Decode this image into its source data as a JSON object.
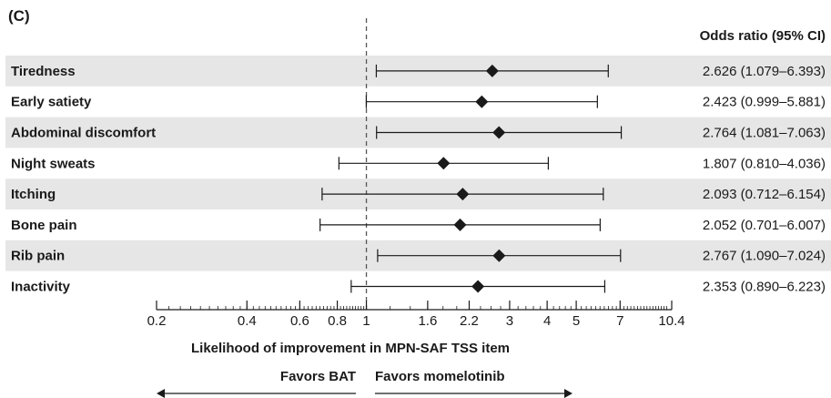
{
  "panel_label": "(C)",
  "chart_data": {
    "type": "forest",
    "xscale": "log",
    "xlim": [
      0.2,
      10.4
    ],
    "reference_line": 1,
    "xlabel": "Likelihood of improvement in MPN-SAF TSS item",
    "column_header": "Odds ratio (95% CI)",
    "x_ticks": [
      0.2,
      0.4,
      0.6,
      0.8,
      1,
      1.6,
      2.2,
      3,
      4,
      5,
      7,
      10.4
    ],
    "x_tick_labels": [
      "0.2",
      "0.4",
      "0.6",
      "0.8",
      "1",
      "1.6",
      "2.2",
      "3",
      "4",
      "5",
      "7",
      "10.4"
    ],
    "direction_left": "Favors BAT",
    "direction_right": "Favors momelotinib",
    "rows": [
      {
        "label": "Tiredness",
        "or": 2.626,
        "lo": 1.079,
        "hi": 6.393,
        "text": "2.626 (1.079–6.393)",
        "shaded": true
      },
      {
        "label": "Early satiety",
        "or": 2.423,
        "lo": 0.999,
        "hi": 5.881,
        "text": "2.423 (0.999–5.881)",
        "shaded": false
      },
      {
        "label": "Abdominal discomfort",
        "or": 2.764,
        "lo": 1.081,
        "hi": 7.063,
        "text": "2.764 (1.081–7.063)",
        "shaded": true
      },
      {
        "label": "Night sweats",
        "or": 1.807,
        "lo": 0.81,
        "hi": 4.036,
        "text": "1.807 (0.810–4.036)",
        "shaded": false
      },
      {
        "label": "Itching",
        "or": 2.093,
        "lo": 0.712,
        "hi": 6.154,
        "text": "2.093 (0.712–6.154)",
        "shaded": true
      },
      {
        "label": "Bone pain",
        "or": 2.052,
        "lo": 0.701,
        "hi": 6.007,
        "text": "2.052 (0.701–6.007)",
        "shaded": false
      },
      {
        "label": "Rib pain",
        "or": 2.767,
        "lo": 1.09,
        "hi": 7.024,
        "text": "2.767 (1.090–7.024)",
        "shaded": true
      },
      {
        "label": "Inactivity",
        "or": 2.353,
        "lo": 0.89,
        "hi": 6.223,
        "text": "2.353 (0.890–6.223)",
        "shaded": false
      }
    ],
    "colors": {
      "row_shade": "#e6e6e6",
      "marker": "#1a1a1a",
      "line": "#1a1a1a",
      "ref_line": "#555555"
    }
  }
}
